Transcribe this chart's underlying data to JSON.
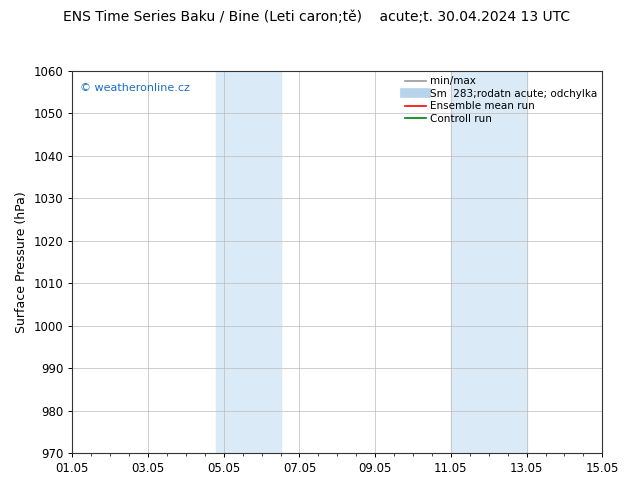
{
  "title": "ENS Time Series Baku / Bine (Leti caron;tě)    acute;t. 30.04.2024 13 UTC",
  "ylabel": "Surface Pressure (hPa)",
  "ylim": [
    970,
    1060
  ],
  "yticks": [
    970,
    980,
    990,
    1000,
    1010,
    1020,
    1030,
    1040,
    1050,
    1060
  ],
  "xlim_start": 0,
  "xlim_end": 14,
  "xtick_labels": [
    "01.05",
    "03.05",
    "05.05",
    "07.05",
    "09.05",
    "11.05",
    "13.05",
    "15.05"
  ],
  "xtick_positions": [
    0,
    2,
    4,
    6,
    8,
    10,
    12,
    14
  ],
  "shaded_bands": [
    {
      "x_start": 3.8,
      "x_end": 5.5,
      "color": "#daeaf7"
    },
    {
      "x_start": 10.0,
      "x_end": 12.0,
      "color": "#daeaf7"
    }
  ],
  "watermark_text": "© weatheronline.cz",
  "watermark_color": "#1a6fc4",
  "legend_entries": [
    {
      "label": "min/max",
      "color": "#999999",
      "linestyle": "-",
      "linewidth": 1.2
    },
    {
      "label": "Sm  283;rodatn acute; odchylka",
      "color": "#b8d4ea",
      "linestyle": "-",
      "linewidth": 7
    },
    {
      "label": "Ensemble mean run",
      "color": "red",
      "linestyle": "-",
      "linewidth": 1.2
    },
    {
      "label": "Controll run",
      "color": "green",
      "linestyle": "-",
      "linewidth": 1.2
    }
  ],
  "bg_color": "#ffffff",
  "plot_bg_color": "#ffffff",
  "grid_color": "#bbbbbb",
  "title_fontsize": 10,
  "tick_fontsize": 8.5,
  "ylabel_fontsize": 9,
  "legend_fontsize": 7.5,
  "watermark_fontsize": 8
}
